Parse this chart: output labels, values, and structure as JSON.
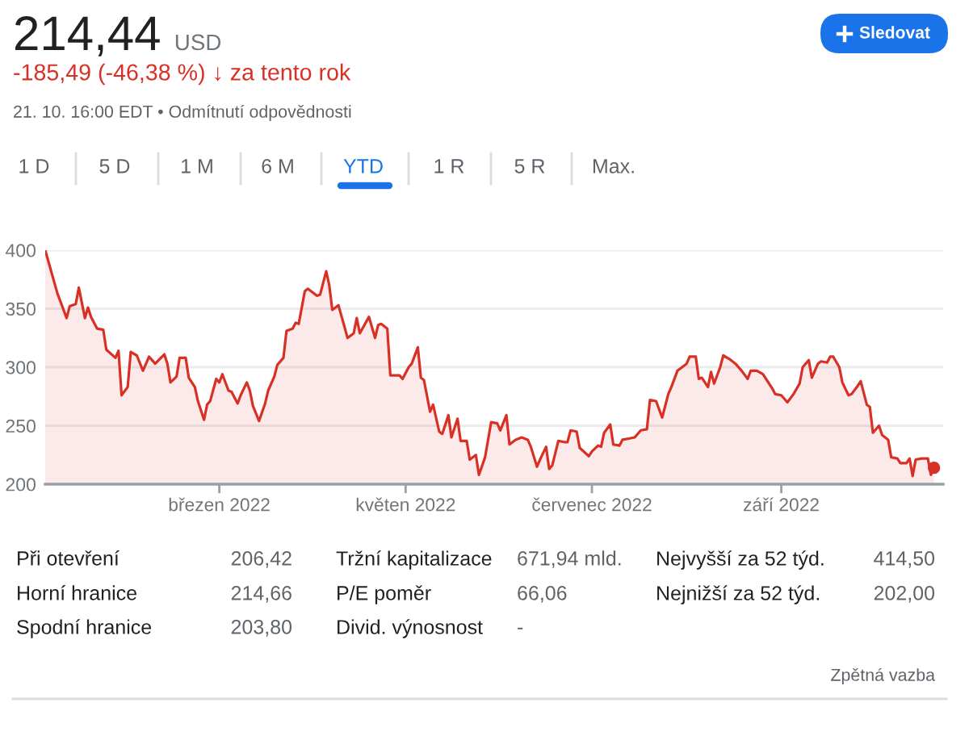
{
  "chart_data": {
    "type": "area",
    "title": "214,44",
    "subtitle": "-185,49 (-46,38 %) ↓ za tento rok",
    "annotations": [
      "USD",
      "21. 10. 16:00 EDT • Odmítnutí odpovědnosti",
      "Sledovat",
      "1 D",
      "5 D",
      "1 M",
      "6 M",
      "YTD",
      "1 R",
      "5 R",
      "Max.",
      "Při otevření",
      "206,42",
      "Tržní kapitalizace",
      "671,94 mld.",
      "Nejvyšší za 52 týd.",
      "414,50",
      "Horní hranice",
      "214,66",
      "P/E poměr",
      "66,06",
      "Nejnižší za 52 týd.",
      "202,00",
      "Spodní hranice",
      "203,80",
      "Divid. výnosnost",
      "-",
      "Zpětná vazba"
    ],
    "x": [
      "2022-01-03",
      "2022-01-07",
      "2022-01-08",
      "2022-01-10",
      "2022-01-11",
      "2022-01-13",
      "2022-01-14",
      "2022-01-16",
      "2022-01-17",
      "2022-01-18",
      "2022-01-20",
      "2022-01-22",
      "2022-01-23",
      "2022-01-26",
      "2022-01-27",
      "2022-01-28",
      "2022-01-30",
      "2022-01-31",
      "2022-02-02",
      "2022-02-04",
      "2022-02-06",
      "2022-02-08",
      "2022-02-11",
      "2022-02-12",
      "2022-02-13",
      "2022-02-15",
      "2022-02-16",
      "2022-02-18",
      "2022-02-19",
      "2022-02-21",
      "2022-02-22",
      "2022-02-24",
      "2022-02-25",
      "2022-02-26",
      "2022-02-28",
      "2022-03-01",
      "2022-03-02",
      "2022-03-04",
      "2022-03-05",
      "2022-03-07",
      "2022-03-08",
      "2022-03-10",
      "2022-03-11",
      "2022-03-12",
      "2022-03-14",
      "2022-03-16",
      "2022-03-17",
      "2022-03-19",
      "2022-03-20",
      "2022-03-22",
      "2022-03-23",
      "2022-03-25",
      "2022-03-26",
      "2022-03-27",
      "2022-03-29",
      "2022-03-30",
      "2022-03-31",
      "2022-04-02",
      "2022-04-03",
      "2022-04-05",
      "2022-04-06",
      "2022-04-07",
      "2022-04-09",
      "2022-04-12",
      "2022-04-14",
      "2022-04-15",
      "2022-04-16",
      "2022-04-19",
      "2022-04-21",
      "2022-04-22",
      "2022-04-23",
      "2022-04-25",
      "2022-04-26",
      "2022-04-29",
      "2022-04-30",
      "2022-05-02",
      "2022-05-03",
      "2022-05-05",
      "2022-05-06",
      "2022-05-07",
      "2022-05-09",
      "2022-05-10",
      "2022-05-12",
      "2022-05-13",
      "2022-05-15",
      "2022-05-16",
      "2022-05-18",
      "2022-05-19",
      "2022-05-21",
      "2022-05-22",
      "2022-05-24",
      "2022-05-25",
      "2022-05-27",
      "2022-05-29",
      "2022-05-31",
      "2022-06-01",
      "2022-06-03",
      "2022-06-04",
      "2022-06-06",
      "2022-06-08",
      "2022-06-10",
      "2022-06-11",
      "2022-06-13",
      "2022-06-14",
      "2022-06-16",
      "2022-06-17",
      "2022-06-18",
      "2022-06-20",
      "2022-06-22",
      "2022-06-23",
      "2022-06-24",
      "2022-06-26",
      "2022-06-27",
      "2022-06-30",
      "2022-07-01",
      "2022-07-03",
      "2022-07-04",
      "2022-07-05",
      "2022-07-07",
      "2022-07-08",
      "2022-07-10",
      "2022-07-11",
      "2022-07-13",
      "2022-07-15",
      "2022-07-17",
      "2022-07-19",
      "2022-07-20",
      "2022-07-22",
      "2022-07-24",
      "2022-07-26",
      "2022-07-27",
      "2022-07-29",
      "2022-07-30",
      "2022-08-01",
      "2022-08-02",
      "2022-08-04",
      "2022-08-05",
      "2022-08-06",
      "2022-08-08",
      "2022-08-09",
      "2022-08-10",
      "2022-08-12",
      "2022-08-13",
      "2022-08-15",
      "2022-08-17",
      "2022-08-19",
      "2022-08-21",
      "2022-08-22",
      "2022-08-24",
      "2022-08-26",
      "2022-08-28",
      "2022-08-29",
      "2022-08-30",
      "2022-09-01",
      "2022-09-03",
      "2022-09-05",
      "2022-09-07",
      "2022-09-08",
      "2022-09-10",
      "2022-09-11",
      "2022-09-13",
      "2022-09-14",
      "2022-09-16",
      "2022-09-17",
      "2022-09-18",
      "2022-09-20",
      "2022-09-21",
      "2022-09-23",
      "2022-09-24",
      "2022-09-26",
      "2022-09-27",
      "2022-09-29",
      "2022-09-30",
      "2022-10-01",
      "2022-10-03",
      "2022-10-04",
      "2022-10-06",
      "2022-10-07",
      "2022-10-09",
      "2022-10-10",
      "2022-10-12",
      "2022-10-13",
      "2022-10-14",
      "2022-10-15",
      "2022-10-17",
      "2022-10-19",
      "2022-10-20",
      "2022-10-21"
    ],
    "series": [
      {
        "color": "#d93025",
        "values": [
          400,
          363,
          356,
          342,
          352,
          354,
          368,
          342,
          351,
          343,
          333,
          332,
          315,
          308,
          314,
          276,
          283,
          313,
          310,
          297,
          309,
          303,
          311,
          303,
          287,
          292,
          308,
          308,
          291,
          283,
          271,
          255,
          268,
          271,
          290,
          287,
          294,
          280,
          279,
          269,
          276,
          287,
          280,
          267,
          254,
          269,
          280,
          292,
          302,
          308,
          331,
          333,
          338,
          337,
          365,
          367,
          365,
          361,
          362,
          382,
          370,
          349,
          353,
          325,
          329,
          342,
          329,
          343,
          325,
          336,
          337,
          333,
          293,
          293,
          290,
          300,
          303,
          317,
          291,
          289,
          262,
          268,
          245,
          243,
          259,
          240,
          256,
          237,
          237,
          221,
          225,
          208,
          223,
          253,
          252,
          246,
          259,
          234,
          238,
          240,
          238,
          232,
          215,
          221,
          232,
          213,
          216,
          237,
          236,
          236,
          246,
          245,
          231,
          224,
          228,
          233,
          232,
          244,
          251,
          234,
          233,
          238,
          239,
          240,
          246,
          247,
          272,
          271,
          257,
          277,
          283,
          297,
          299,
          303,
          309,
          309,
          290,
          291,
          283,
          296,
          286,
          300,
          310,
          307,
          303,
          297,
          290,
          297,
          297,
          294,
          286,
          282,
          277,
          276,
          270,
          277,
          286,
          300,
          306,
          291,
          303,
          305,
          304,
          309,
          309,
          300,
          287,
          276,
          277,
          284,
          288,
          268,
          266,
          244,
          250,
          242,
          238,
          223,
          222,
          218,
          218,
          222,
          207,
          221,
          222,
          222,
          208,
          214
        ]
      },
      {
        "type": "scatter",
        "color": "#d93025",
        "x": [
          "2022-10-21"
        ],
        "values": [
          214
        ]
      }
    ],
    "xlim": [
      "2022-01-03",
      "2022-10-24"
    ],
    "ylim": [
      200,
      400
    ],
    "xticks": [
      {
        "value": "2022-03-01",
        "label": "březen 2022"
      },
      {
        "value": "2022-05-01",
        "label": "květen 2022"
      },
      {
        "value": "2022-07-01",
        "label": "červenec 2022"
      },
      {
        "value": "2022-09-01",
        "label": "září 2022"
      }
    ],
    "yticks": [
      200,
      250,
      300,
      350,
      400
    ],
    "grid": "y"
  }
}
